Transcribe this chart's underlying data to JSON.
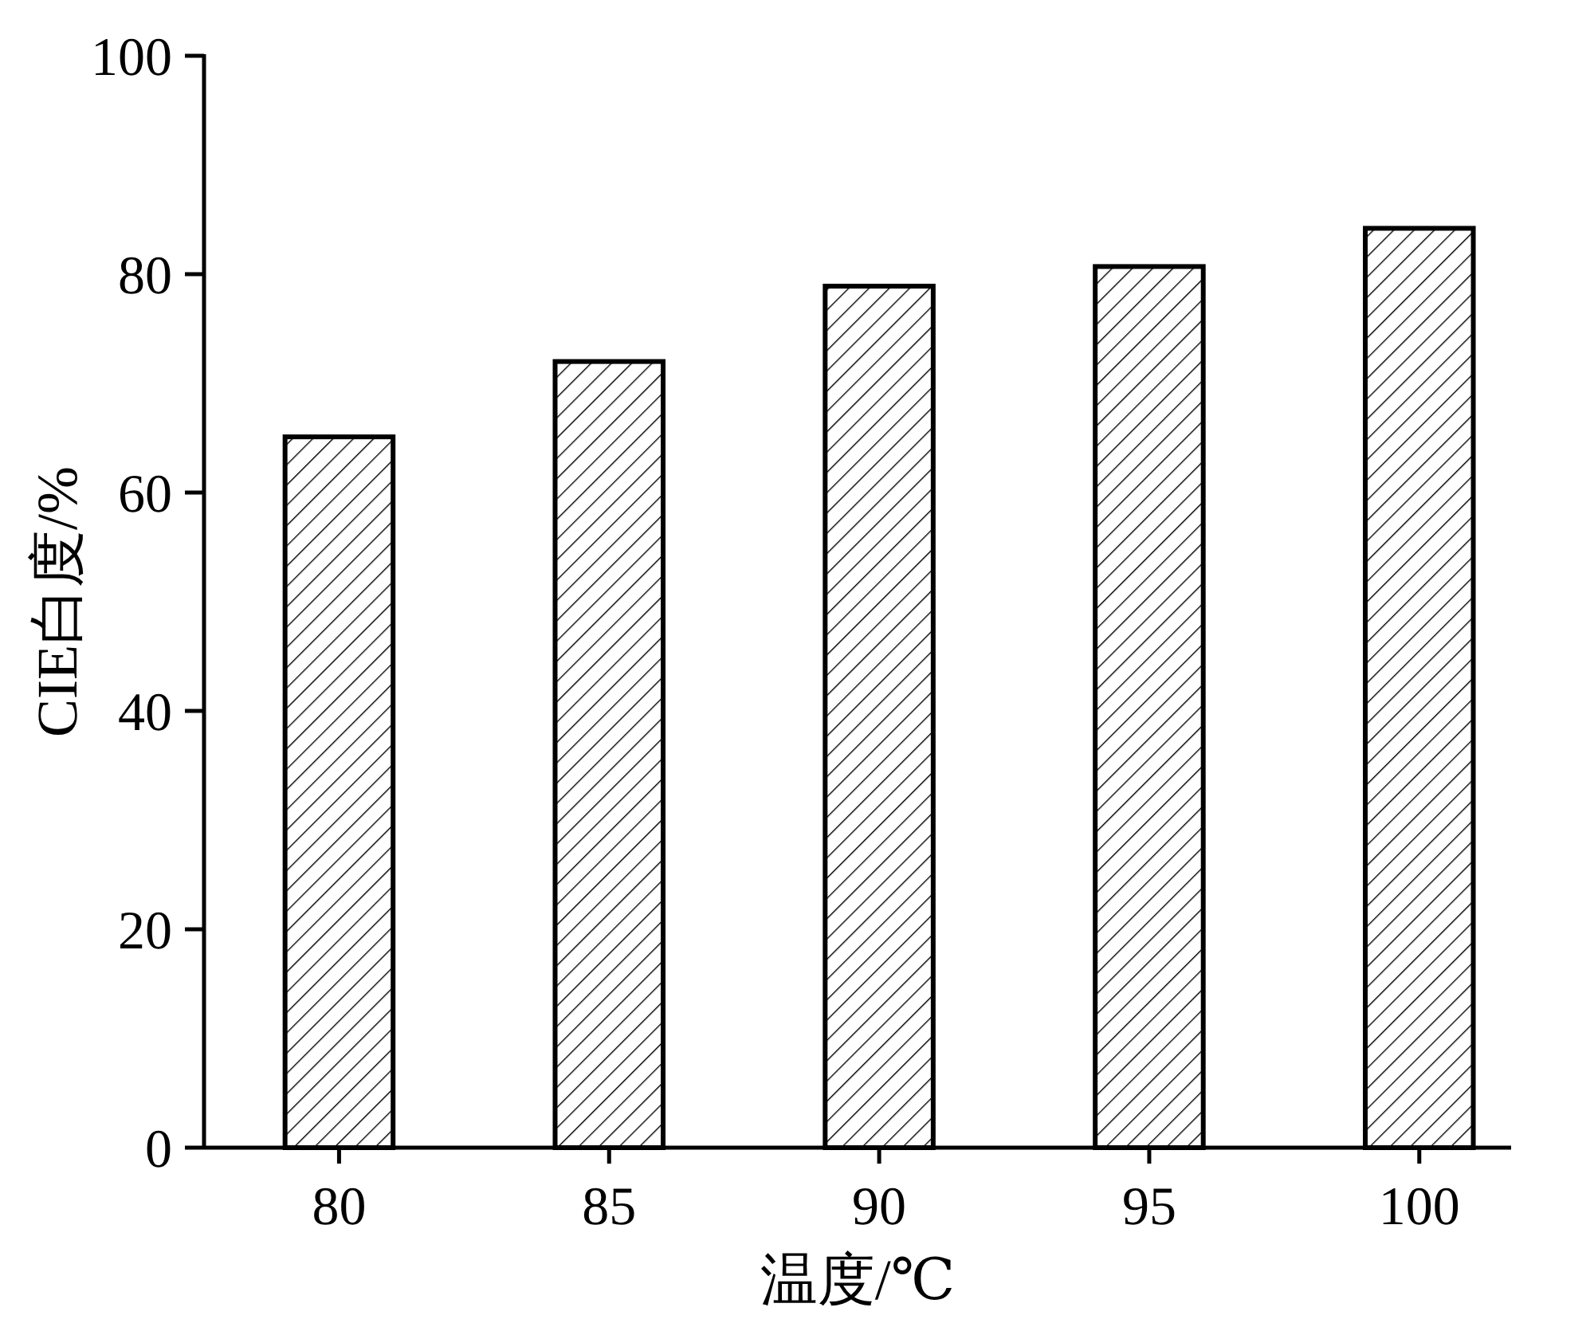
{
  "chart_data": {
    "type": "bar",
    "xlabel": "温度/℃",
    "ylabel": "CIE白度/%",
    "categories": [
      "80",
      "85",
      "90",
      "95",
      "100"
    ],
    "values": [
      65.1,
      72.0,
      78.9,
      80.7,
      84.2
    ],
    "color": "#000000",
    "ylim": [
      0,
      100
    ],
    "yticks": [
      0,
      20,
      40,
      60,
      80,
      100
    ],
    "grid": false
  }
}
